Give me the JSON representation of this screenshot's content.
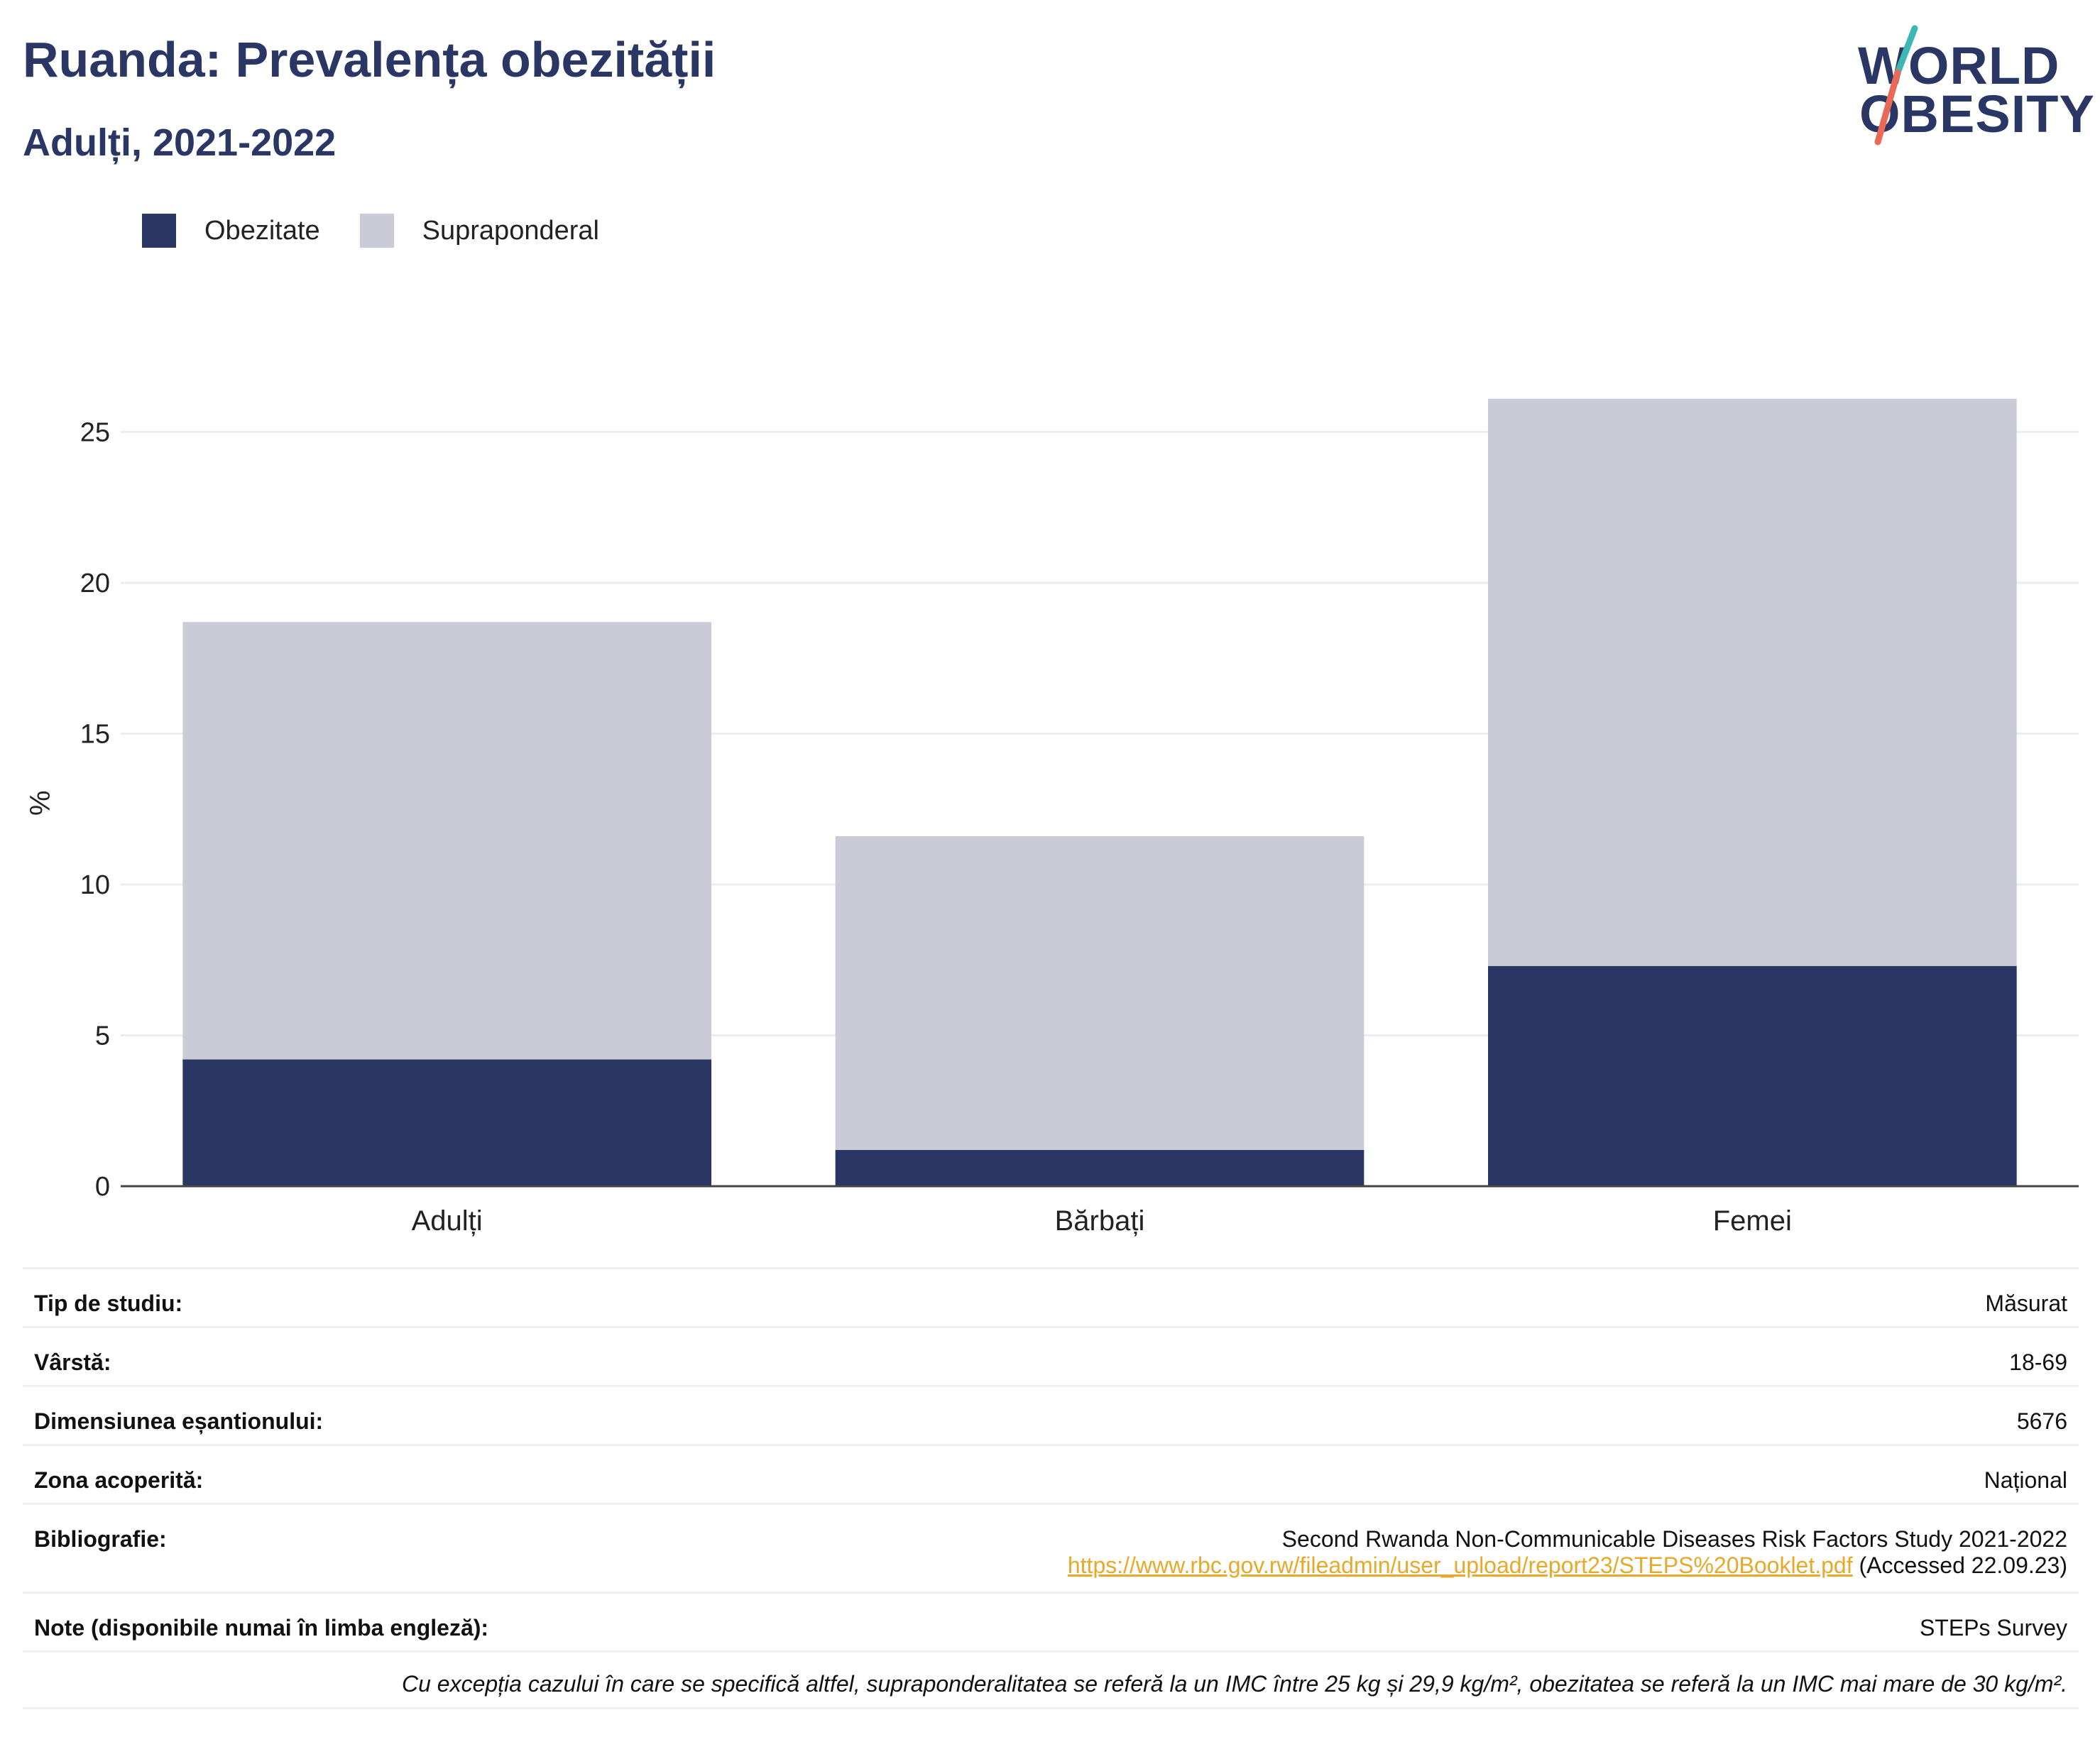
{
  "header": {
    "title": "Ruanda: Prevalența obezității",
    "subtitle": "Adulți, 2021-2022"
  },
  "logo": {
    "line1": "WORLD",
    "line2": "OBESITY"
  },
  "colors": {
    "obesity": "#2a3664",
    "overweight": "#cacbd6",
    "accent_link": "#e7a92a",
    "logo_teal": "#3fb8b5",
    "logo_coral": "#e96a57"
  },
  "legend": [
    {
      "label": "Obezitate",
      "color": "#2a3664"
    },
    {
      "label": "Supraponderal",
      "color": "#cacbd6"
    }
  ],
  "chart_data": {
    "type": "bar",
    "stacked": true,
    "categories": [
      "Adulți",
      "Bărbați",
      "Femei"
    ],
    "series": [
      {
        "name": "Obezitate",
        "values": [
          4.2,
          1.2,
          7.3
        ]
      },
      {
        "name": "Supraponderal",
        "values": [
          14.5,
          10.4,
          18.8
        ]
      }
    ],
    "ylabel": "%",
    "yticks": [
      0,
      5,
      10,
      15,
      20,
      25
    ],
    "ylim": [
      0,
      27.5
    ],
    "grid": true,
    "legend_position": "top-left"
  },
  "info": {
    "study_type": {
      "label": "Tip de studiu:",
      "value": "Măsurat"
    },
    "age": {
      "label": "Vârstă:",
      "value": "18-69"
    },
    "sample_size": {
      "label": "Dimensiunea eșantionului:",
      "value": "5676"
    },
    "area": {
      "label": "Zona acoperită:",
      "value": "Național"
    },
    "bibliography": {
      "label": "Bibliografie:",
      "title": "Second Rwanda Non-Communicable Diseases Risk Factors Study 2021-2022",
      "link": "https://www.rbc.gov.rw/fileadmin/user_upload/report23/STEPS%20Booklet.pdf",
      "accessed": "(Accessed 22.09.23)"
    },
    "notes": {
      "label": "Note (disponibile numai în limba engleză):",
      "value": "STEPs Survey"
    },
    "footnote": "Cu excepția cazului în care se specifică altfel, supraponderalitatea se referă la un IMC între 25 kg și 29,9 kg/m², obezitatea se referă la un IMC mai mare de 30 kg/m²."
  }
}
